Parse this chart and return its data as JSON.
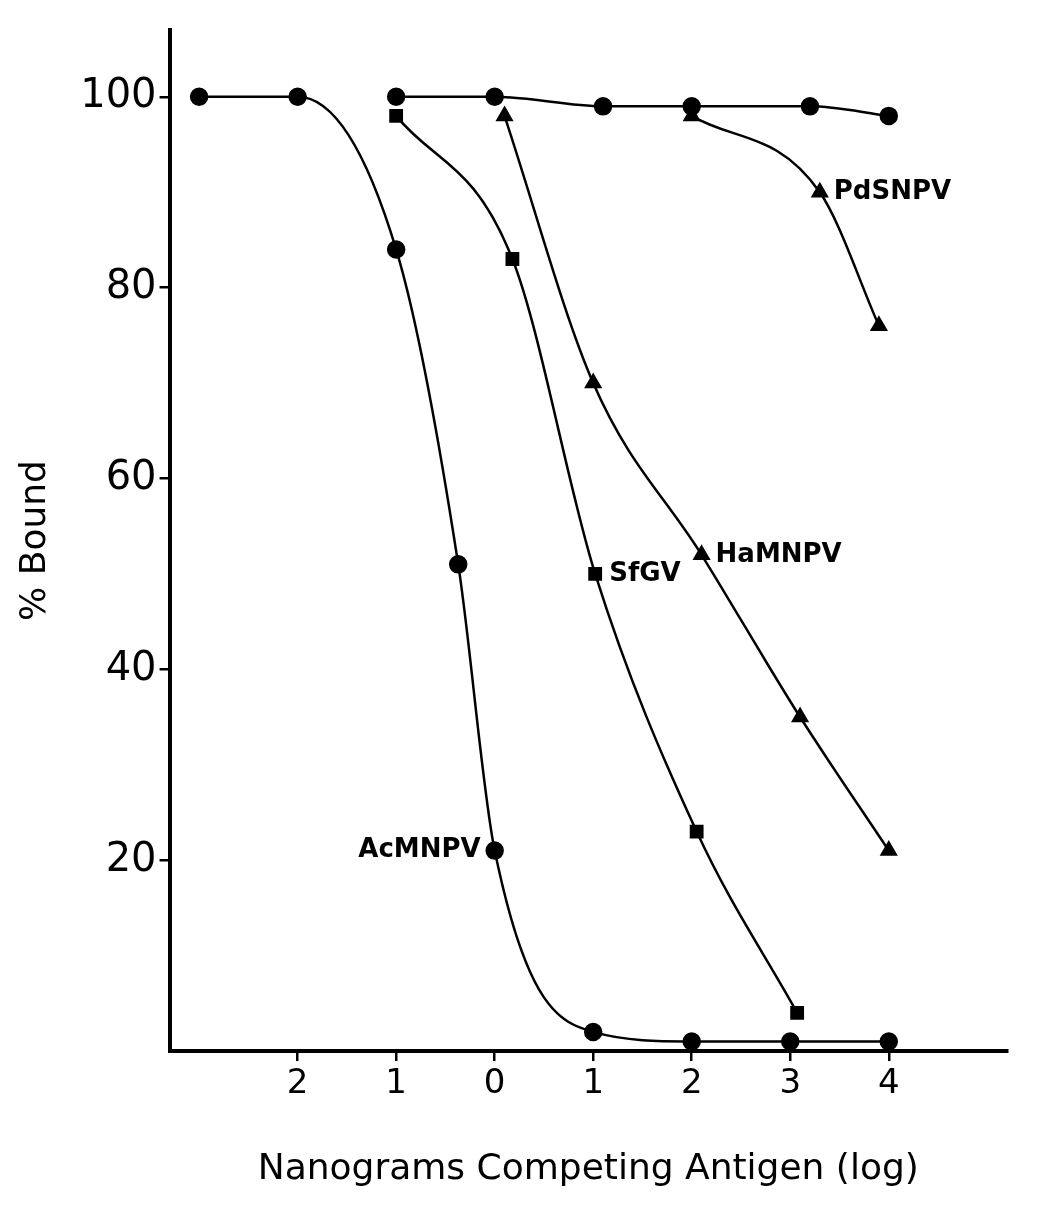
{
  "chart_data": {
    "type": "line",
    "xlabel": "Nanograms Competing Antigen (log)",
    "ylabel": "% Bound",
    "xlim": [
      -3.3,
      5.2
    ],
    "xticks": [
      {
        "value": -2,
        "label": "2"
      },
      {
        "value": -1,
        "label": "1"
      },
      0,
      1,
      2,
      3,
      4
    ],
    "ylim": [
      0,
      107
    ],
    "yticks": [
      20,
      40,
      60,
      80,
      100
    ],
    "grid": false,
    "legend": false,
    "line_style": "solid",
    "series": [
      {
        "name": "AcMNPV",
        "color": "#000000",
        "marker": "circle",
        "x": [
          -3,
          -2,
          -1,
          -0.37,
          0,
          1,
          2,
          3,
          4
        ],
        "values": [
          100,
          100,
          84,
          51,
          21,
          2,
          1,
          1,
          1
        ]
      },
      {
        "name": "SfGV",
        "color": "#000000",
        "marker": "square",
        "x": [
          -1,
          0.18,
          1.02,
          2.05,
          3.07
        ],
        "values": [
          98,
          83,
          50,
          23,
          4
        ]
      },
      {
        "name": "HaMNPV",
        "color": "#000000",
        "marker": "triangle",
        "x": [
          0.1,
          1,
          2.1,
          3.1,
          4
        ],
        "values": [
          98,
          70,
          52,
          35,
          21
        ]
      },
      {
        "name": "PdSNPV",
        "color": "#000000",
        "marker": "triangle",
        "x": [
          2,
          3.3,
          3.9
        ],
        "values": [
          98,
          90,
          76
        ]
      },
      {
        "color": "#000000",
        "marker": "circle",
        "x": [
          -1,
          0,
          1.1,
          2,
          3.2,
          4
        ],
        "values": [
          100,
          100,
          99,
          99,
          99,
          98
        ]
      }
    ]
  }
}
